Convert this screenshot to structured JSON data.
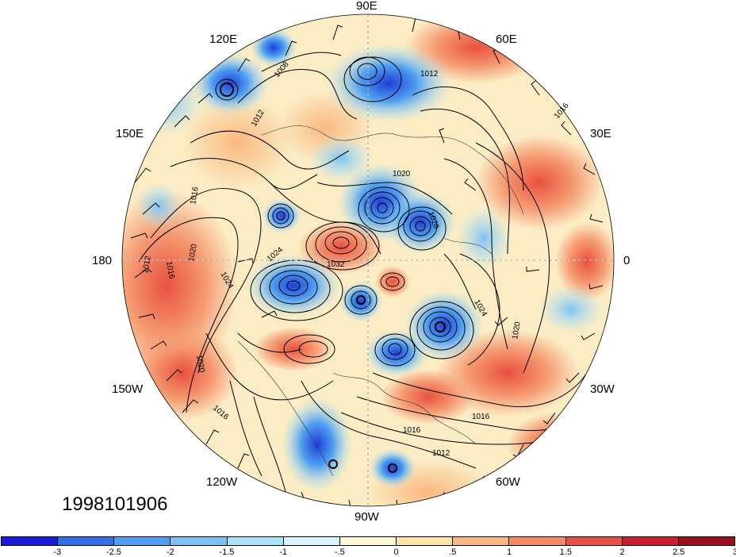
{
  "date_stamp": "1998101906",
  "longitude_labels": {
    "lon_90e": "90E",
    "lon_120e": "120E",
    "lon_60e": "60E",
    "lon_150e": "150E",
    "lon_30e": "30E",
    "lon_180": "180",
    "lon_0": "0",
    "lon_150w": "150W",
    "lon_30w": "30W",
    "lon_120w": "120W",
    "lon_60w": "60W",
    "lon_90w": "90W"
  },
  "contour_labels": [
    "1008",
    "1012",
    "1016",
    "1020",
    "1024",
    "1028",
    "1032",
    "1016",
    "1012",
    "1020",
    "1024",
    "1016",
    "1020",
    "1016",
    "1012",
    "1024",
    "1020",
    "1016",
    "1012",
    "1016"
  ],
  "colorbar": {
    "colors": [
      "#1a1ad8",
      "#2f6fe8",
      "#4f9ff0",
      "#7cc3f5",
      "#a8e4f8",
      "#d9f4fb",
      "#fff8d4",
      "#fde3a4",
      "#f9b87f",
      "#f48a62",
      "#ea4f47",
      "#c91e2e",
      "#9b0f1f"
    ],
    "tick_labels": [
      "-3",
      "-2.5",
      "-2",
      "-1.5",
      "-1",
      "-.5",
      "0",
      ".5",
      "1",
      "1.5",
      "2",
      "2.5",
      "3"
    ]
  }
}
